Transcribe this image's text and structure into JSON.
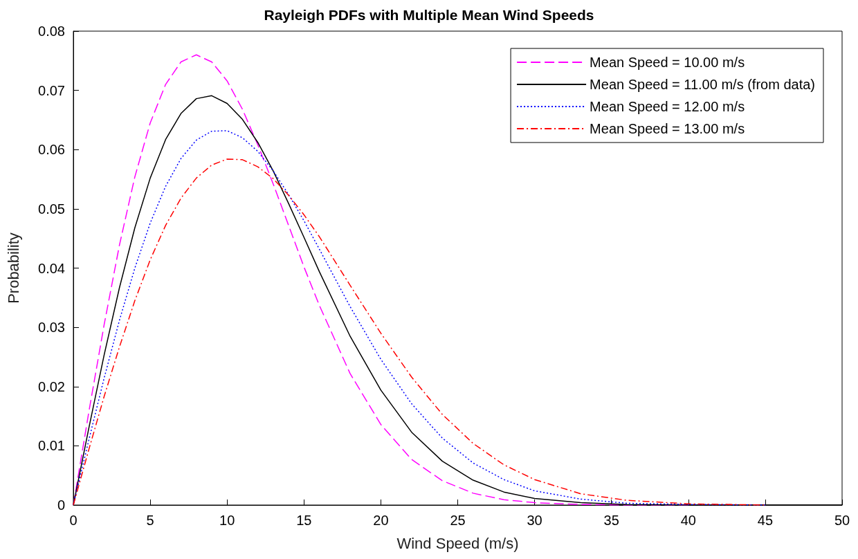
{
  "chart_data": {
    "type": "line",
    "title": "Rayleigh PDFs with Multiple Mean Wind Speeds",
    "xlabel": "Wind Speed (m/s)",
    "ylabel": "Probability",
    "x": [
      0,
      1,
      2,
      3,
      4,
      5,
      6,
      7,
      8,
      9,
      10,
      11,
      12,
      13,
      14,
      15,
      16,
      18,
      20,
      22,
      24,
      26,
      28,
      30,
      33,
      36,
      40,
      45,
      50
    ],
    "series": [
      {
        "name": "Mean Speed = 10.00 m/s",
        "color": "#ff00ff",
        "line_style": "dashed",
        "values": [
          0,
          0.0156,
          0.0304,
          0.0439,
          0.0554,
          0.0645,
          0.071,
          0.0748,
          0.076,
          0.0748,
          0.0716,
          0.0668,
          0.0608,
          0.0542,
          0.0472,
          0.0402,
          0.0337,
          0.0222,
          0.0136,
          0.0077,
          0.0041,
          0.002,
          0.0009,
          0.0004,
          0.0001,
          0,
          0,
          null,
          null
        ]
      },
      {
        "name": "Mean Speed = 11.00 m/s (from data)",
        "color": "#000000",
        "line_style": "solid",
        "values": [
          0,
          0.0129,
          0.0253,
          0.0367,
          0.0468,
          0.0552,
          0.0617,
          0.0661,
          0.0686,
          0.0691,
          0.0678,
          0.0651,
          0.0612,
          0.0564,
          0.0509,
          0.0452,
          0.0394,
          0.0285,
          0.0194,
          0.0123,
          0.0074,
          0.0042,
          0.0022,
          0.0011,
          0.0004,
          0.0001,
          0,
          0,
          0
        ]
      },
      {
        "name": "Mean Speed = 12.00 m/s",
        "color": "#0000ff",
        "line_style": "dotted",
        "values": [
          0,
          0.0109,
          0.0214,
          0.0312,
          0.04,
          0.0476,
          0.0538,
          0.0585,
          0.0616,
          0.0631,
          0.0632,
          0.062,
          0.0597,
          0.0564,
          0.0524,
          0.048,
          0.0432,
          0.0335,
          0.0246,
          0.0171,
          0.0113,
          0.0071,
          0.0043,
          0.0024,
          0.001,
          0.0003,
          0.0001,
          0,
          null
        ]
      },
      {
        "name": "Mean Speed = 13.00 m/s",
        "color": "#ff0000",
        "line_style": "dashdot",
        "values": [
          0,
          0.0093,
          0.0183,
          0.0267,
          0.0345,
          0.0414,
          0.0472,
          0.0518,
          0.0552,
          0.0574,
          0.0584,
          0.0583,
          0.0571,
          0.0551,
          0.0523,
          0.049,
          0.0453,
          0.0371,
          0.029,
          0.0216,
          0.0153,
          0.0104,
          0.0068,
          0.0043,
          0.0019,
          0.0008,
          0.0002,
          0,
          null
        ]
      }
    ],
    "xlim": [
      0,
      50
    ],
    "xticks": [
      0,
      5,
      10,
      15,
      20,
      25,
      30,
      35,
      40,
      45,
      50
    ],
    "ylim": [
      0,
      0.08
    ],
    "yticks": [
      0,
      0.01,
      0.02,
      0.03,
      0.04,
      0.05,
      0.06,
      0.07,
      0.08
    ],
    "legend": "top right"
  }
}
